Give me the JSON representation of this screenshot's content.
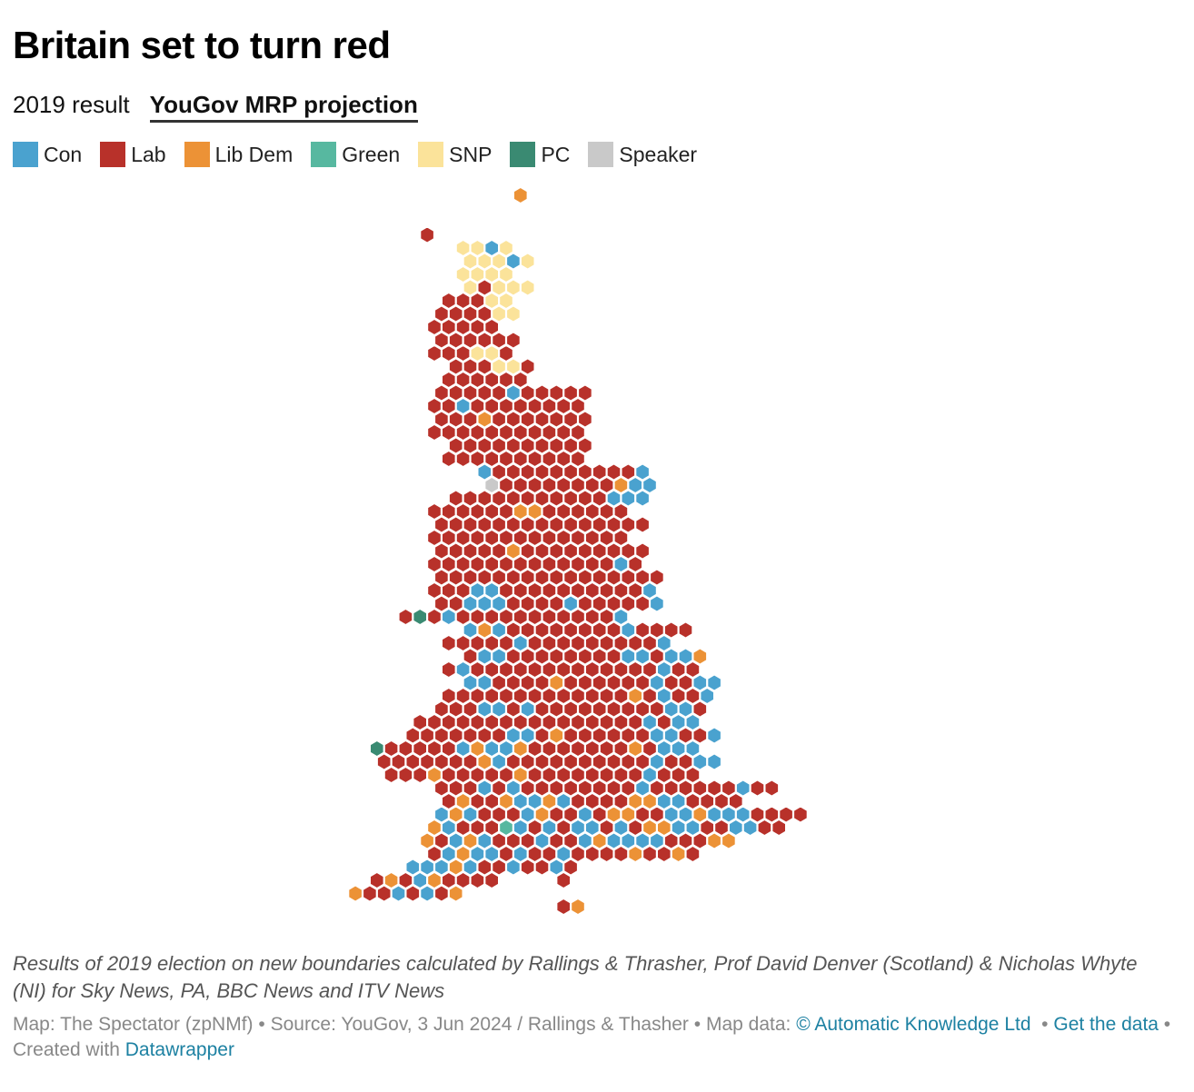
{
  "title": "Britain set to turn red",
  "tabs": [
    {
      "label": "2019 result",
      "active": false
    },
    {
      "label": "YouGov MRP projection",
      "active": true
    }
  ],
  "legend": [
    {
      "key": "C",
      "label": "Con",
      "color": "#4aa2cf"
    },
    {
      "key": "L",
      "label": "Lab",
      "color": "#b8312a"
    },
    {
      "key": "D",
      "label": "Lib Dem",
      "color": "#ec9236"
    },
    {
      "key": "G",
      "label": "Green",
      "color": "#57b8a0"
    },
    {
      "key": "S",
      "label": "SNP",
      "color": "#fbe39a"
    },
    {
      "key": "P",
      "label": "PC",
      "color": "#3a8a72"
    },
    {
      "key": "K",
      "label": "Speaker",
      "color": "#c9c9c9"
    }
  ],
  "map_data": {
    "type": "hex-cartogram",
    "description_rows": [
      {
        "r": 0,
        "cells": "D"
      },
      {
        "r": 3,
        "cells": "L"
      },
      {
        "r": 4,
        "cells": "SSCS"
      },
      {
        "r": 5,
        "cells": "SSSCS"
      },
      {
        "r": 6,
        "cells": "SSSS"
      },
      {
        "r": 7,
        "cells": "SLSSS"
      },
      {
        "r": 8,
        "cells": "LLLSS"
      },
      {
        "r": 9,
        "cells": "LLLLSS"
      },
      {
        "r": 10,
        "cells": "LLLLL"
      },
      {
        "r": 11,
        "cells": "LLLLLL"
      },
      {
        "r": 12,
        "cells": "LLLSSL"
      },
      {
        "r": 13,
        "cells": "LLLSSL"
      },
      {
        "r": 14,
        "cells": "LLLLLL"
      },
      {
        "r": 15,
        "cells": "LLLLLCLLLLL"
      },
      {
        "r": 16,
        "cells": "LLCLLLLLLLL"
      },
      {
        "r": 17,
        "cells": "LLLDLLLLLLL"
      },
      {
        "r": 18,
        "cells": "LLLLLLLLLLL"
      },
      {
        "r": 19,
        "cells": "LLLLLLLLLL"
      },
      {
        "r": 20,
        "cells": "LLLLLLLLLL"
      },
      {
        "r": 21,
        "cells": "CLLLLLLLLLLC"
      },
      {
        "r": 22,
        "cells": "KLLLLLLLLDCC"
      },
      {
        "r": 23,
        "cells": "LLLLLLLLLLLCCC"
      },
      {
        "r": 24,
        "cells": "LLLLLLDDLLLLLL"
      },
      {
        "r": 25,
        "cells": "LLLLLLLLLLLLLLL"
      },
      {
        "r": 26,
        "cells": "LLLLLLLLLLLLLL"
      },
      {
        "r": 27,
        "cells": "LLLLLDLLLLLLLLL"
      },
      {
        "r": 28,
        "cells": "LLLLLLLLLLLLLCL"
      },
      {
        "r": 29,
        "cells": "LLLLLLLLLLLLLLLL"
      },
      {
        "r": 30,
        "cells": "LLLCCLLLLLLLLLLC"
      },
      {
        "r": 31,
        "cells": "LLCCCLLLLCLLLLLC"
      },
      {
        "r": 32,
        "cells": "LPLCLLLLLLLLLLLC"
      },
      {
        "r": 33,
        "cells": "CDCLLLLLLLLCLLLL"
      },
      {
        "r": 34,
        "cells": "LLLLLCLLLLLLLLLC"
      },
      {
        "r": 35,
        "cells": "LCCLLLLLLLLCCLCCD"
      },
      {
        "r": 36,
        "cells": "LCLLLLLLLLLLLLLCLL"
      },
      {
        "r": 37,
        "cells": "CCLLLLDLLLLLLCLLCC"
      },
      {
        "r": 38,
        "cells": "LLLLLLLLLLLLLDLCLLC"
      },
      {
        "r": 39,
        "cells": "LLLCCLCLLLLLLLLLCCL"
      },
      {
        "r": 40,
        "cells": "LLLLLLLLLLLLLLLLCLCC"
      },
      {
        "r": 41,
        "cells": "LLLLLLLCCLDLLLLLLCCLLC"
      },
      {
        "r": 42,
        "cells": "PLLLLLCDCCDLLLLLLLDLCCC"
      },
      {
        "r": 43,
        "cells": "LLLLLLLDCLLLLLLLLLLCLLCC"
      },
      {
        "r": 44,
        "cells": "LLLDLLLLLDLLLLLLLLCLLL"
      },
      {
        "r": 45,
        "cells": "LLLCLCLLLLLLLLCLLLLLLCLL"
      },
      {
        "r": 46,
        "cells": "LDLLDCCDCLLLLDDCCLLLL"
      },
      {
        "r": 47,
        "cells": "CDCLLLCDLLCLDDLLCCDCCCLLLL"
      },
      {
        "r": 48,
        "cells": "DCLLLGCLCLCCLCLDDCCLLCCLL"
      },
      {
        "r": 49,
        "cells": "DLCDCLLLCLLCDCCCCLLLDD"
      },
      {
        "r": 50,
        "cells": "LCDCCLCLLCLLLLDLLDL"
      },
      {
        "r": 51,
        "cells": "CCCDCLLCLLC"
      },
      {
        "r": 52,
        "cells": "LDLCDLLLL"
      },
      {
        "r": 53,
        "cells": "DLLCLCLD"
      },
      {
        "r": 54,
        "cells": "LD"
      }
    ]
  },
  "notes": "Results of 2019 election on new boundaries calculated by Rallings & Thrasher, Prof David Denver (Scotland) & Nicholas Whyte (NI) for Sky News, PA, BBC News and ITV News",
  "footer": {
    "map_credit": "Map: The Spectator (zpNMf)",
    "source": "Source: YouGov, 3 Jun 2024 / Rallings & Thasher",
    "map_data_label": "Map data:",
    "map_data_link": "© Automatic Knowledge Ltd",
    "get_data_link": "Get the data",
    "created_with": "Created with",
    "tool_link": "Datawrapper"
  }
}
